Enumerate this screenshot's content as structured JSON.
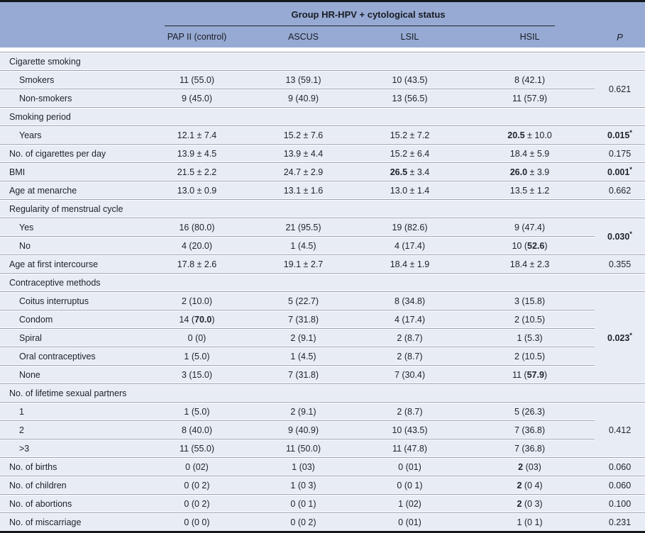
{
  "colors": {
    "header_band": "#97aad3",
    "row_background": "#e8ecf4",
    "separator_line": "#949cae",
    "frame_line": "#14171c",
    "text": "#20242c"
  },
  "header": {
    "group_title": "Group HR-HPV + cytological status",
    "columns": [
      "PAP II (control)",
      "ASCUS",
      "LSIL",
      "HSIL"
    ],
    "p_label": "P"
  },
  "rows": [
    {
      "type": "section",
      "label": "Cigarette smoking"
    },
    {
      "type": "data",
      "indent": true,
      "label": "Smokers",
      "cells": [
        "11 (55.0)",
        "13 (59.1)",
        "10 (43.5)",
        "8 (42.1)"
      ],
      "p": {
        "text": "0.621",
        "span": 2
      }
    },
    {
      "type": "data",
      "indent": true,
      "label": "Non-smokers",
      "cells": [
        "9 (45.0)",
        "9 (40.9)",
        "13 (56.5)",
        "11 (57.9)"
      ]
    },
    {
      "type": "section",
      "label": "Smoking period"
    },
    {
      "type": "data",
      "indent": true,
      "label": "Years",
      "cells": [
        "12.1 ± 7.4",
        "15.2 ± 7.6",
        "15.2 ± 7.2",
        "**20.5** ± 10.0"
      ],
      "p": {
        "text": "**0.015**",
        "star": "*",
        "span": 1
      }
    },
    {
      "type": "data",
      "label": "No. of cigarettes per day",
      "cells": [
        "13.9 ± 4.5",
        "13.9 ± 4.4",
        "15.2 ± 6.4",
        "18.4 ± 5.9"
      ],
      "p": {
        "text": "0.175",
        "span": 1
      }
    },
    {
      "type": "data",
      "label": "BMI",
      "cells": [
        "21.5 ± 2.2",
        "24.7 ± 2.9",
        "**26.5** ± 3.4",
        "**26.0** ± 3.9"
      ],
      "p": {
        "text": "**0.001**",
        "star": "*",
        "span": 1
      }
    },
    {
      "type": "data",
      "label": "Age at menarche",
      "cells": [
        "13.0 ± 0.9",
        "13.1 ± 1.6",
        "13.0 ± 1.4",
        "13.5 ± 1.2"
      ],
      "p": {
        "text": "0.662",
        "span": 1
      }
    },
    {
      "type": "section",
      "label": "Regularity of menstrual cycle"
    },
    {
      "type": "data",
      "indent": true,
      "label": "Yes",
      "cells": [
        "16 (80.0)",
        "21 (95.5)",
        "19 (82.6)",
        "9 (47.4)"
      ],
      "p": {
        "text": "**0.030**",
        "star": "*",
        "span": 2
      }
    },
    {
      "type": "data",
      "indent": true,
      "label": "No",
      "cells": [
        "4 (20.0)",
        "1 (4.5)",
        "4 (17.4)",
        "10 (**52.6**)"
      ]
    },
    {
      "type": "data",
      "label": "Age at first intercourse",
      "cells": [
        "17.8 ± 2.6",
        "19.1 ± 2.7",
        "18.4 ± 1.9",
        "18.4 ± 2.3"
      ],
      "p": {
        "text": "0.355",
        "span": 1
      }
    },
    {
      "type": "section",
      "label": "Contraceptive methods"
    },
    {
      "type": "data",
      "indent": true,
      "label": "Coitus interruptus",
      "cells": [
        "2 (10.0)",
        "5 (22.7)",
        "8 (34.8)",
        "3 (15.8)"
      ],
      "p": {
        "text": "**0.023**",
        "star": "*",
        "span": 5
      }
    },
    {
      "type": "data",
      "indent": true,
      "label": "Condom",
      "cells": [
        "14 (**70.0**)",
        "7 (31.8)",
        "4 (17.4)",
        "2 (10.5)"
      ]
    },
    {
      "type": "data",
      "indent": true,
      "label": "Spiral",
      "cells": [
        "0 (0)",
        "2 (9.1)",
        "2 (8.7)",
        "1 (5.3)"
      ]
    },
    {
      "type": "data",
      "indent": true,
      "label": "Oral contraceptives",
      "cells": [
        "1 (5.0)",
        "1 (4.5)",
        "2 (8.7)",
        "2 (10.5)"
      ]
    },
    {
      "type": "data",
      "indent": true,
      "label": "None",
      "cells": [
        "3 (15.0)",
        "7 (31.8)",
        "7 (30.4)",
        "11 (**57.9**)"
      ]
    },
    {
      "type": "section",
      "label": "No. of lifetime sexual partners"
    },
    {
      "type": "data",
      "indent": true,
      "label": "1",
      "cells": [
        "1 (5.0)",
        "2 (9.1)",
        "2 (8.7)",
        "5 (26.3)"
      ],
      "p": {
        "text": "0.412",
        "span": 3
      }
    },
    {
      "type": "data",
      "indent": true,
      "label": "2",
      "cells": [
        "8 (40.0)",
        "9 (40.9)",
        "10 (43.5)",
        "7 (36.8)"
      ]
    },
    {
      "type": "data",
      "indent": true,
      "label": ">3",
      "cells": [
        "11 (55.0)",
        "11 (50.0)",
        "11 (47.8)",
        "7 (36.8)"
      ]
    },
    {
      "type": "data",
      "label": "No. of births",
      "cells": [
        "0 (02)",
        "1 (03)",
        "0 (01)",
        "**2** (03)"
      ],
      "p": {
        "text": "0.060",
        "span": 1
      }
    },
    {
      "type": "data",
      "label": "No. of children",
      "cells": [
        "0 (0 2)",
        "1 (0 3)",
        "0 (0 1)",
        "**2** (0 4)"
      ],
      "p": {
        "text": "0.060",
        "span": 1
      }
    },
    {
      "type": "data",
      "label": "No. of abortions",
      "cells": [
        "0 (0 2)",
        "0 (0 1)",
        "1 (02)",
        "**2** (0 3)"
      ],
      "p": {
        "text": "0.100",
        "span": 1
      }
    },
    {
      "type": "data",
      "label": "No. of miscarriage",
      "cells": [
        "0 (0 0)",
        "0 (0 2)",
        "0 (01)",
        "1 (0 1)"
      ],
      "p": {
        "text": "0.231",
        "span": 1
      }
    }
  ]
}
